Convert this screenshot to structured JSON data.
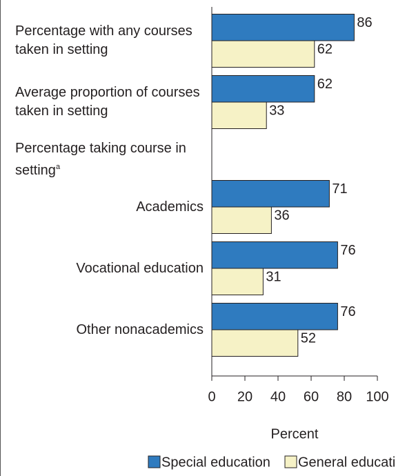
{
  "chart_data": {
    "type": "bar",
    "orientation": "horizontal",
    "categories": [
      "Percentage with any courses taken in setting",
      "Average proportion of courses taken in setting",
      "Percentage taking course in setting",
      "Academics",
      "Vocational education",
      "Other nonacademics"
    ],
    "category_markers": [
      null,
      null,
      "a",
      null,
      null,
      null
    ],
    "series": [
      {
        "name": "Special education",
        "color": "#2f7bbf",
        "values": [
          86,
          62,
          null,
          71,
          76,
          76
        ]
      },
      {
        "name": "General education",
        "color": "#f6f2c6",
        "values": [
          62,
          33,
          null,
          36,
          31,
          52
        ]
      }
    ],
    "xlim": [
      0,
      100
    ],
    "xticks": [
      0,
      20,
      40,
      60,
      80,
      100
    ],
    "xlabel": "Percent",
    "legend": "bottom"
  }
}
